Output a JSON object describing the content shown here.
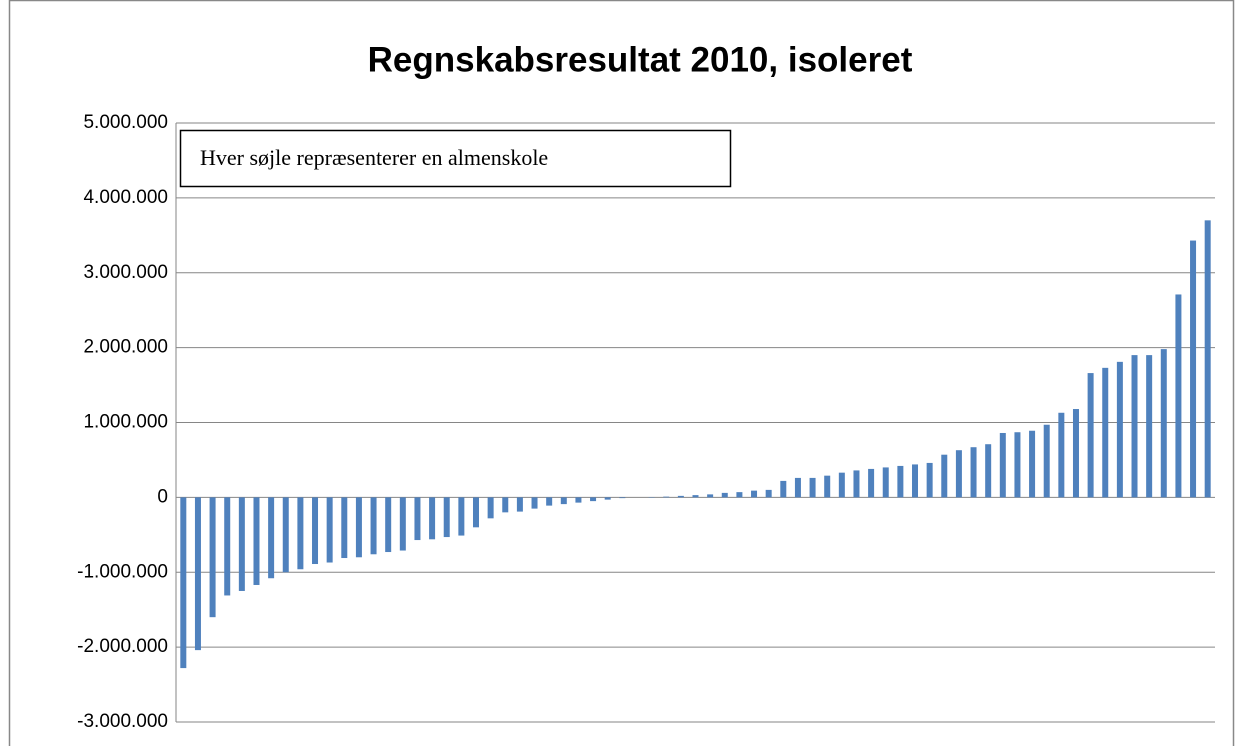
{
  "chart_data": {
    "type": "bar",
    "title": "Regnskabsresultat 2010, isoleret",
    "annotation": "Hver søjle repræsenterer en almenskole",
    "categories": [
      null,
      null,
      null,
      null,
      null,
      null,
      null,
      null,
      null,
      null,
      null,
      null,
      null,
      null,
      null,
      null,
      null,
      null,
      null,
      null,
      null,
      null,
      null,
      null,
      null,
      null,
      null,
      null,
      null,
      null,
      null,
      null,
      null,
      null,
      null,
      null,
      null,
      null,
      null,
      null,
      null,
      null,
      null,
      null,
      null,
      null,
      null,
      null,
      null,
      null,
      null,
      null,
      null,
      null,
      null,
      null,
      null,
      null,
      null,
      null,
      null,
      null,
      null,
      null,
      null,
      null,
      null,
      null,
      null,
      null,
      null
    ],
    "values": [
      -2280000,
      -2040000,
      -1600000,
      -1310000,
      -1250000,
      -1170000,
      -1080000,
      -1000000,
      -960000,
      -890000,
      -870000,
      -810000,
      -800000,
      -760000,
      -730000,
      -710000,
      -570000,
      -560000,
      -530000,
      -510000,
      -400000,
      -280000,
      -200000,
      -190000,
      -150000,
      -110000,
      -90000,
      -70000,
      -50000,
      -30000,
      -10000,
      0,
      5000,
      10000,
      20000,
      30000,
      40000,
      60000,
      70000,
      90000,
      100000,
      220000,
      260000,
      260000,
      290000,
      330000,
      360000,
      380000,
      400000,
      420000,
      440000,
      460000,
      570000,
      630000,
      670000,
      710000,
      860000,
      870000,
      890000,
      970000,
      1130000,
      1180000,
      1660000,
      1730000,
      1810000,
      1900000,
      1900000,
      1980000,
      2710000,
      3430000,
      3700000
    ],
    "color": "#4f81bd",
    "ylim": [
      -3000000,
      5000000
    ],
    "yticks": [
      {
        "value": -3000000,
        "label": "-3.000.000"
      },
      {
        "value": -2000000,
        "label": "-2.000.000"
      },
      {
        "value": -1000000,
        "label": "-1.000.000"
      },
      0,
      {
        "value": 1000000,
        "label": "1.000.000"
      },
      {
        "value": 2000000,
        "label": "2.000.000"
      },
      {
        "value": 3000000,
        "label": "3.000.000"
      },
      {
        "value": 4000000,
        "label": "4.000.000"
      },
      {
        "value": 5000000,
        "label": "5.000.000"
      }
    ],
    "grid": true
  }
}
